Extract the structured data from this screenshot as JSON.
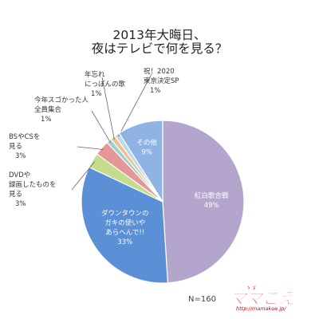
{
  "title_line1": "2013年大晦日、",
  "title_line2": "夜はテレビで何を見る？",
  "sample_size": "N=160",
  "logo_url": "http://mamakoe.jp/",
  "chart_data": {
    "type": "pie",
    "start": "12 o'clock",
    "direction": "clockwise",
    "slices": [
      {
        "lines": [
          "紅白歌合戦"
        ],
        "pct": "49%",
        "value": 49,
        "color": "#b3a5cc",
        "label_pos": "inside"
      },
      {
        "lines": [
          "ダウンタウンの",
          "ガキの使いや",
          "あらへんで!!"
        ],
        "pct": "33%",
        "value": 33,
        "color": "#5b8fd6",
        "label_pos": "inside"
      },
      {
        "lines": [
          "DVDや",
          "録画したものを",
          "見る"
        ],
        "pct": "3%",
        "value": 3,
        "color": "#c5dc8c",
        "label_pos": "outside"
      },
      {
        "lines": [
          "BSやCSを",
          "見る"
        ],
        "pct": "3%",
        "value": 3,
        "color": "#e59696",
        "label_pos": "outside"
      },
      {
        "lines": [
          "今年スゴかった人",
          "全員集合"
        ],
        "pct": "1%",
        "value": 1,
        "color": "#9bd1d6",
        "label_pos": "outside"
      },
      {
        "lines": [
          "年忘れ",
          "にっぽんの歌"
        ],
        "pct": "1%",
        "value": 1,
        "color": "#f3bf8a",
        "label_pos": "outside"
      },
      {
        "lines": [
          "祝！2020",
          "東京決定SP"
        ],
        "pct": "1%",
        "value": 1,
        "color": "#b8d8ee",
        "label_pos": "outside"
      },
      {
        "lines": [
          "その他"
        ],
        "pct": "9%",
        "value": 9,
        "color": "#8fb4e3",
        "label_pos": "inside"
      }
    ]
  }
}
